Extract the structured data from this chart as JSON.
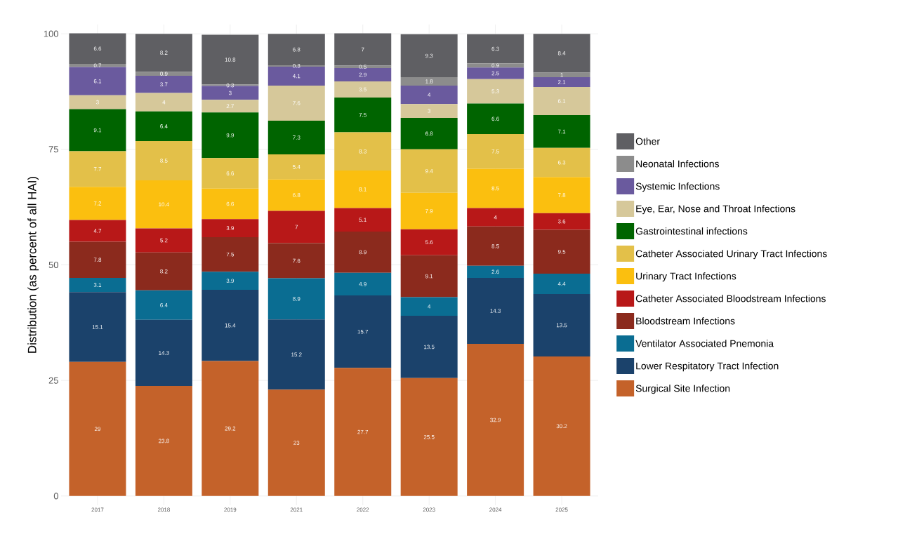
{
  "chart_data": {
    "type": "bar",
    "stacked": true,
    "ylabel": "Distribution (as percent of all HAI)",
    "categories": [
      "2017",
      "2018",
      "2019",
      "2021",
      "2022",
      "2023",
      "2024",
      "2025"
    ],
    "series": [
      {
        "name": "Surgical Site Infection",
        "color": "#c4622a",
        "values": [
          29,
          23.8,
          29.2,
          23,
          27.7,
          25.5,
          32.9,
          30.2
        ]
      },
      {
        "name": "Lower Respitatory Tract Infection",
        "color": "#1b426b",
        "values": [
          15.1,
          14.3,
          15.4,
          15.2,
          15.7,
          13.5,
          14.3,
          13.5
        ]
      },
      {
        "name": "Ventilator Associated Pnemonia",
        "color": "#0a6d92",
        "values": [
          3.1,
          6.4,
          3.9,
          8.9,
          4.9,
          4,
          2.6,
          4.4
        ]
      },
      {
        "name": "Bloodstream Infections",
        "color": "#8b2a1d",
        "values": [
          7.8,
          8.2,
          7.5,
          7.6,
          8.9,
          9.1,
          8.5,
          9.5
        ]
      },
      {
        "name": "Catheter Associated Bloodstream Infections",
        "color": "#b81818",
        "values": [
          4.7,
          5.2,
          3.9,
          7,
          5.1,
          5.6,
          4,
          3.6
        ]
      },
      {
        "name": "Urinary Tract Infections",
        "color": "#fbbf0f",
        "values": [
          7.2,
          10.4,
          6.6,
          6.8,
          8.1,
          7.9,
          8.5,
          7.8
        ]
      },
      {
        "name": "Catheter Associated Urinary Tract Infections",
        "color": "#e3c049",
        "values": [
          7.7,
          8.5,
          6.6,
          5.4,
          8.3,
          9.4,
          7.5,
          6.3
        ]
      },
      {
        "name": "Gastrointestinal infections",
        "color": "#006400",
        "values": [
          9.1,
          6.4,
          9.9,
          7.3,
          7.5,
          6.8,
          6.6,
          7.1
        ]
      },
      {
        "name": "Eye, Ear, Nose and Throat Infections",
        "color": "#d6c89a",
        "values": [
          3,
          4,
          2.7,
          7.6,
          3.5,
          3,
          5.3,
          6.1
        ]
      },
      {
        "name": "Systemic Infections",
        "color": "#6a5a9e",
        "values": [
          6.1,
          3.7,
          3,
          4.1,
          2.9,
          4,
          2.5,
          2.1
        ]
      },
      {
        "name": "Neonatal Infections",
        "color": "#8c8c8c",
        "values": [
          0.7,
          0.9,
          0.3,
          0.3,
          0.5,
          1.8,
          0.9,
          1
        ]
      },
      {
        "name": "Other",
        "color": "#5f5f63",
        "values": [
          6.6,
          8.2,
          10.8,
          6.8,
          7,
          9.3,
          6.3,
          8.4
        ]
      }
    ],
    "ylim": [
      -2,
      102
    ],
    "yticks": [
      0,
      25,
      50,
      75,
      100
    ],
    "grid": true,
    "legend": "right",
    "data_labels": true
  }
}
